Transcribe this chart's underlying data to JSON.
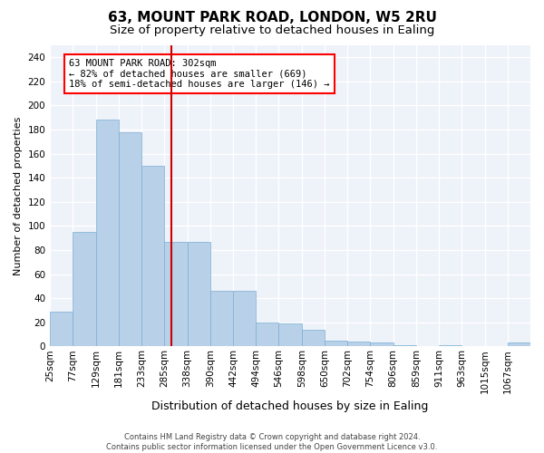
{
  "title_line1": "63, MOUNT PARK ROAD, LONDON, W5 2RU",
  "title_line2": "Size of property relative to detached houses in Ealing",
  "xlabel": "Distribution of detached houses by size in Ealing",
  "ylabel": "Number of detached properties",
  "footer_line1": "Contains HM Land Registry data © Crown copyright and database right 2024.",
  "footer_line2": "Contains public sector information licensed under the Open Government Licence v3.0.",
  "annotation_line1": "63 MOUNT PARK ROAD: 302sqm",
  "annotation_line2": "← 82% of detached houses are smaller (669)",
  "annotation_line3": "18% of semi-detached houses are larger (146) →",
  "bar_color": "#b8d0e8",
  "bar_edge_color": "#7aafd4",
  "vline_color": "#cc0000",
  "vline_x_index": 5,
  "categories": [
    "25sqm",
    "77sqm",
    "129sqm",
    "181sqm",
    "233sqm",
    "285sqm",
    "338sqm",
    "390sqm",
    "442sqm",
    "494sqm",
    "546sqm",
    "598sqm",
    "650sqm",
    "702sqm",
    "754sqm",
    "806sqm",
    "859sqm",
    "911sqm",
    "963sqm",
    "1015sqm",
    "1067sqm"
  ],
  "values": [
    29,
    95,
    188,
    178,
    150,
    87,
    87,
    46,
    46,
    20,
    19,
    14,
    5,
    4,
    3,
    1,
    0,
    1,
    0,
    0,
    3
  ],
  "ylim": [
    0,
    250
  ],
  "yticks": [
    0,
    20,
    40,
    60,
    80,
    100,
    120,
    140,
    160,
    180,
    200,
    220,
    240
  ],
  "bg_color": "#eef2f9",
  "grid_color": "#ffffff",
  "title1_fontsize": 11,
  "title2_fontsize": 9.5,
  "xlabel_fontsize": 9,
  "ylabel_fontsize": 8,
  "tick_fontsize": 7.5,
  "footer_fontsize": 6,
  "annotation_fontsize": 7.5
}
